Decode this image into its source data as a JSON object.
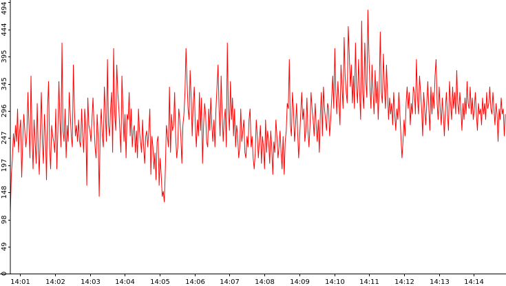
{
  "chart_data": {
    "type": "line",
    "title": "",
    "xlabel": "",
    "ylabel": "",
    "ylim": [
      0,
      494
    ],
    "grid": false,
    "legend": "none",
    "line_color": "#ff0000",
    "axis_color": "#000000",
    "y_ticks": [
      0,
      49,
      98,
      148,
      197,
      247,
      296,
      345,
      395,
      444,
      494
    ],
    "y_tick_labels": [
      "0",
      "49",
      "98",
      "148",
      "197",
      "247",
      "296",
      "345",
      "395",
      "444",
      "494"
    ],
    "x_ticks": [
      "14:01",
      "14:02",
      "14:03",
      "14:04",
      "14:05",
      "14:06",
      "14:07",
      "14:08",
      "14:09",
      "14:10",
      "14:11",
      "14:12",
      "14:13",
      "14:14"
    ],
    "x_tick_minutes": [
      1,
      2,
      3,
      4,
      5,
      6,
      7,
      8,
      9,
      10,
      11,
      12,
      13,
      14
    ],
    "x_range_minutes": [
      0.72,
      14.9
    ],
    "series": [
      {
        "values": [
          110,
          180,
          210,
          255,
          230,
          270,
          240,
          300,
          220,
          260,
          280,
          175,
          240,
          290,
          260,
          230,
          250,
          330,
          270,
          210,
          360,
          250,
          190,
          280,
          240,
          200,
          310,
          230,
          180,
          260,
          330,
          240,
          200,
          290,
          250,
          170,
          300,
          350,
          230,
          190,
          270,
          250,
          240,
          220,
          300,
          190,
          260,
          350,
          280,
          230,
          420,
          260,
          240,
          300,
          210,
          270,
          240,
          330,
          290,
          250,
          230,
          380,
          300,
          250,
          270,
          240,
          280,
          240,
          230,
          300,
          250,
          220,
          300,
          270,
          160,
          320,
          270,
          260,
          240,
          280,
          320,
          270,
          230,
          210,
          290,
          250,
          140,
          260,
          300,
          250,
          230,
          340,
          290,
          240,
          390,
          270,
          250,
          300,
          330,
          220,
          410,
          290,
          260,
          380,
          330,
          300,
          260,
          220,
          360,
          300,
          240,
          290,
          210,
          290,
          280,
          330,
          250,
          300,
          230,
          260,
          270,
          220,
          260,
          210,
          300,
          260,
          240,
          220,
          280,
          230,
          200,
          250,
          260,
          230,
          260,
          300,
          180,
          250,
          230,
          190,
          220,
          170,
          240,
          250,
          160,
          210,
          180,
          140,
          150,
          130,
          190,
          270,
          250,
          230,
          340,
          220,
          290,
          260,
          270,
          330,
          250,
          210,
          230,
          300,
          280,
          250,
          200,
          270,
          290,
          330,
          410,
          350,
          300,
          280,
          370,
          320,
          250,
          310,
          340,
          270,
          230,
          280,
          250,
          330,
          260,
          320,
          200,
          270,
          310,
          290,
          240,
          230,
          300,
          260,
          320,
          270,
          240,
          280,
          230,
          300,
          340,
          380,
          300,
          250,
          360,
          290,
          240,
          280,
          300,
          230,
          420,
          300,
          260,
          350,
          280,
          320,
          250,
          300,
          230,
          270,
          250,
          210,
          230,
          300,
          240,
          260,
          280,
          220,
          210,
          250,
          230,
          280,
          300,
          230,
          250,
          210,
          190,
          220,
          280,
          250,
          210,
          240,
          270,
          200,
          250,
          230,
          190,
          280,
          220,
          260,
          240,
          200,
          260,
          230,
          180,
          240,
          220,
          280,
          250,
          210,
          230,
          260,
          220,
          190,
          250,
          180,
          240,
          260,
          310,
          300,
          390,
          270,
          250,
          330,
          300,
          240,
          270,
          310,
          260,
          210,
          250,
          290,
          330,
          280,
          300,
          240,
          260,
          320,
          260,
          230,
          270,
          330,
          300,
          280,
          250,
          310,
          270,
          240,
          280,
          220,
          290,
          330,
          250,
          340,
          300,
          280,
          260,
          310,
          300,
          250,
          280,
          320,
          360,
          300,
          410,
          330,
          290,
          350,
          310,
          270,
          380,
          340,
          300,
          430,
          360,
          330,
          310,
          450,
          400,
          340,
          380,
          310,
          360,
          300,
          420,
          340,
          310,
          390,
          330,
          280,
          460,
          330,
          300,
          420,
          350,
          320,
          480,
          400,
          340,
          300,
          380,
          330,
          290,
          370,
          310,
          350,
          280,
          340,
          440,
          330,
          310,
          400,
          340,
          300,
          380,
          330,
          280,
          320,
          290,
          310,
          270,
          330,
          290,
          260,
          300,
          280,
          330,
          290,
          250,
          210,
          240,
          280,
          250,
          310,
          340,
          300,
          330,
          270,
          310,
          290,
          340,
          330,
          290,
          390,
          320,
          290,
          360,
          330,
          300,
          250,
          330,
          300,
          270,
          310,
          350,
          300,
          260,
          340,
          290,
          330,
          300,
          360,
          390,
          310,
          280,
          340,
          300,
          270,
          320,
          290,
          250,
          300,
          330,
          290,
          260,
          350,
          310,
          280,
          340,
          300,
          330,
          290,
          370,
          310,
          290,
          330,
          300,
          260,
          310,
          280,
          320,
          290,
          350,
          310,
          300,
          340,
          290,
          320,
          280,
          300,
          330,
          290,
          260,
          310,
          290,
          300,
          270,
          320,
          290,
          310,
          280,
          330,
          300,
          310,
          340,
          300,
          290,
          330,
          300,
          270,
          310,
          290,
          240,
          300,
          280,
          320,
          290,
          300,
          250,
          290
        ]
      }
    ]
  }
}
